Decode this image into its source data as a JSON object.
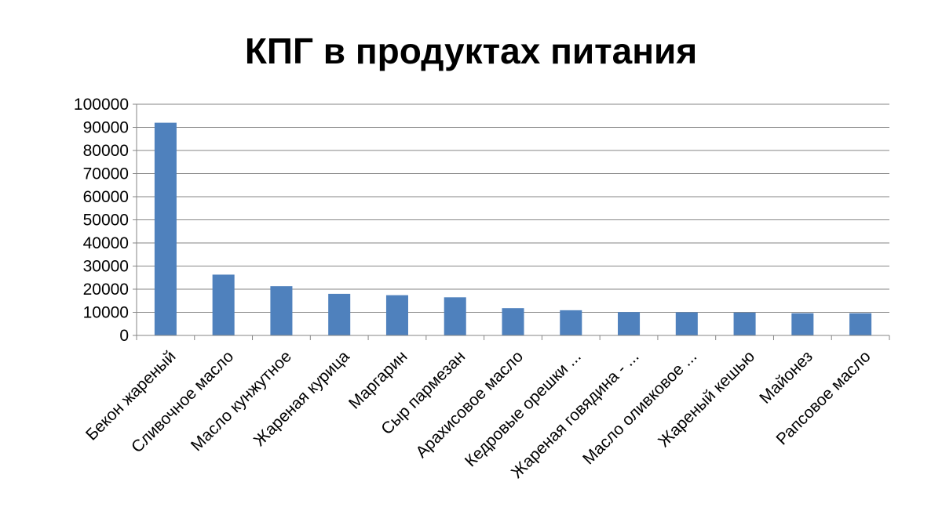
{
  "chart_data": {
    "type": "bar",
    "title": "КПГ в продуктах питания",
    "xlabel": "",
    "ylabel": "",
    "categories": [
      "Бекон жареный",
      "Сливочное масло",
      "Масло кунжутное",
      "Жареная курица",
      "Маргарин",
      "Сыр пармезан",
      "Арахисовое масло",
      "Кедровые орешки ...",
      "Жареная говядина - ...",
      "Масло оливковое ...",
      "Жареный кешью",
      "Майонез",
      "Рапсовое масло"
    ],
    "values": [
      92000,
      26300,
      21300,
      18000,
      17400,
      16500,
      11800,
      10900,
      10100,
      10000,
      9900,
      9600,
      9600
    ],
    "ylim": [
      0,
      100000
    ],
    "yticks": [
      0,
      10000,
      20000,
      30000,
      40000,
      50000,
      60000,
      70000,
      80000,
      90000,
      100000
    ],
    "grid": true,
    "legend": "none",
    "bar_color": "#4f81bd",
    "gridline_color": "#868686"
  }
}
